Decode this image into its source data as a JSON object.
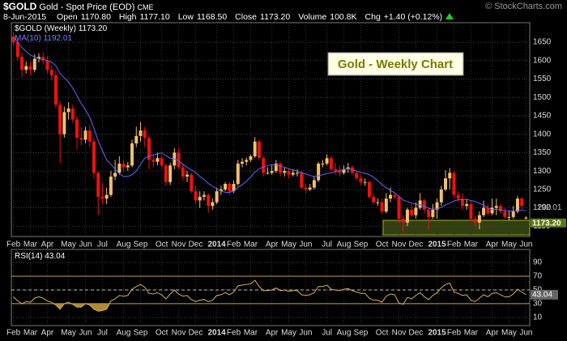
{
  "header": {
    "symbol": "$GOLD",
    "name": "Gold - Spot Price (EOD)",
    "exchange": "CME",
    "copyright": "© StockCharts.com",
    "date": "8-Jun-2015",
    "fields": [
      {
        "label": "Open",
        "value": "1170.80"
      },
      {
        "label": "High",
        "value": "1177.10"
      },
      {
        "label": "Low",
        "value": "1168.50"
      },
      {
        "label": "Close",
        "value": "1173.20"
      },
      {
        "label": "Volume",
        "value": "100.8K"
      },
      {
        "label": "Chg",
        "value": "+1.40 (+0.12%)"
      }
    ]
  },
  "chart_data": [
    {
      "type": "candlestick",
      "annotation": "Gold - Weekly Chart",
      "categories": [
        "Feb",
        null,
        null,
        null,
        "Mar",
        null,
        null,
        null,
        "Apr",
        null,
        null,
        null,
        null,
        "May",
        null,
        null,
        null,
        "Jun",
        null,
        null,
        null,
        "Jul",
        null,
        null,
        null,
        null,
        "Aug",
        null,
        null,
        null,
        "Sep",
        null,
        null,
        null,
        null,
        "Oct",
        null,
        null,
        null,
        "Nov",
        null,
        null,
        null,
        "Dec",
        null,
        null,
        null,
        null,
        "2014",
        null,
        null,
        null,
        "Feb",
        null,
        null,
        null,
        "Mar",
        null,
        null,
        null,
        null,
        "Apr",
        null,
        null,
        null,
        "May",
        null,
        null,
        null,
        "Jun",
        null,
        null,
        null,
        null,
        "Jul",
        null,
        null,
        null,
        "Aug",
        null,
        null,
        null,
        "Sep",
        null,
        null,
        null,
        null,
        "Oct",
        null,
        null,
        null,
        "Nov",
        null,
        null,
        null,
        "Dec",
        null,
        null,
        null,
        null,
        "2015",
        null,
        null,
        null,
        "Feb",
        null,
        null,
        null,
        "Mar",
        null,
        null,
        null,
        null,
        "Apr",
        null,
        null,
        null,
        "May",
        null,
        null,
        null,
        "Jun"
      ],
      "series": [
        {
          "name": "$GOLD (Weekly)",
          "value_label": "1173.20",
          "up_color": "#f0c070",
          "down_color": "#ee1111",
          "open": [
            1665,
            1650,
            1610,
            1575,
            1585,
            1575,
            1605,
            1610,
            1600,
            1575,
            1560,
            1480,
            1400,
            1460,
            1470,
            1440,
            1390,
            1385,
            1410,
            1380,
            1295,
            1230,
            1225,
            1235,
            1285,
            1295,
            1320,
            1310,
            1315,
            1375,
            1395,
            1410,
            1390,
            1330,
            1325,
            1335,
            1315,
            1270,
            1315,
            1350,
            1310,
            1285,
            1290,
            1245,
            1220,
            1230,
            1235,
            1205,
            1215,
            1245,
            1250,
            1265,
            1245,
            1265,
            1320,
            1325,
            1330,
            1340,
            1380,
            1335,
            1295,
            1295,
            1300,
            1320,
            1295,
            1300,
            1290,
            1295,
            1295,
            1255,
            1250,
            1255,
            1275,
            1320,
            1320,
            1335,
            1305,
            1300,
            1295,
            1305,
            1310,
            1295,
            1280,
            1270,
            1270,
            1230,
            1215,
            1215,
            1190,
            1225,
            1235,
            1230,
            1170,
            1160,
            1195,
            1180,
            1200,
            1220,
            1195,
            1175,
            1195,
            1215,
            1250,
            1280,
            1295,
            1235,
            1225,
            1205,
            1210,
            1170,
            1160,
            1180,
            1200,
            1185,
            1200,
            1205,
            1190,
            1175,
            1175,
            1190,
            1225,
            1170.8
          ],
          "high": [
            1677,
            1660,
            1622,
            1597,
            1597,
            1617,
            1620,
            1622,
            1612,
            1587,
            1572,
            1490,
            1475,
            1487,
            1480,
            1450,
            1420,
            1420,
            1425,
            1390,
            1300,
            1268,
            1255,
            1300,
            1330,
            1340,
            1330,
            1325,
            1385,
            1420,
            1433,
            1420,
            1395,
            1345,
            1350,
            1340,
            1320,
            1322,
            1362,
            1362,
            1320,
            1300,
            1295,
            1260,
            1245,
            1245,
            1240,
            1225,
            1255,
            1260,
            1270,
            1270,
            1275,
            1330,
            1335,
            1337,
            1345,
            1392,
            1385,
            1340,
            1310,
            1315,
            1330,
            1325,
            1310,
            1305,
            1305,
            1305,
            1300,
            1265,
            1265,
            1285,
            1325,
            1330,
            1345,
            1340,
            1322,
            1315,
            1315,
            1322,
            1315,
            1300,
            1290,
            1280,
            1275,
            1240,
            1225,
            1225,
            1240,
            1255,
            1240,
            1235,
            1180,
            1200,
            1210,
            1215,
            1240,
            1225,
            1200,
            1210,
            1225,
            1260,
            1302,
            1308,
            1300,
            1245,
            1240,
            1225,
            1220,
            1178,
            1190,
            1220,
            1210,
            1225,
            1225,
            1210,
            1200,
            1190,
            1205,
            1232,
            1230,
            1177.1
          ],
          "low": [
            1640,
            1600,
            1555,
            1565,
            1560,
            1568,
            1595,
            1590,
            1565,
            1545,
            1470,
            1321,
            1390,
            1440,
            1430,
            1360,
            1370,
            1375,
            1365,
            1280,
            1180,
            1210,
            1210,
            1230,
            1275,
            1290,
            1300,
            1300,
            1310,
            1365,
            1380,
            1365,
            1305,
            1310,
            1315,
            1305,
            1260,
            1262,
            1305,
            1305,
            1275,
            1270,
            1240,
            1210,
            1200,
            1220,
            1187,
            1195,
            1210,
            1235,
            1245,
            1235,
            1240,
            1260,
            1310,
            1315,
            1325,
            1335,
            1330,
            1285,
            1290,
            1290,
            1295,
            1285,
            1285,
            1280,
            1285,
            1285,
            1250,
            1240,
            1245,
            1250,
            1270,
            1310,
            1315,
            1300,
            1290,
            1285,
            1290,
            1295,
            1290,
            1275,
            1262,
            1260,
            1225,
            1208,
            1205,
            1183,
            1185,
            1215,
            1222,
            1160,
            1132,
            1150,
            1175,
            1170,
            1195,
            1185,
            1142,
            1170,
            1170,
            1205,
            1245,
            1250,
            1225,
            1215,
            1195,
            1195,
            1165,
            1150,
            1142,
            1175,
            1178,
            1180,
            1180,
            1185,
            1170,
            1165,
            1170,
            1185,
            1195,
            1168.5
          ],
          "close": [
            1650,
            1610,
            1575,
            1585,
            1575,
            1605,
            1610,
            1600,
            1575,
            1560,
            1480,
            1400,
            1460,
            1470,
            1440,
            1390,
            1385,
            1410,
            1380,
            1295,
            1230,
            1225,
            1235,
            1285,
            1295,
            1320,
            1310,
            1315,
            1375,
            1395,
            1410,
            1390,
            1330,
            1325,
            1335,
            1315,
            1270,
            1315,
            1350,
            1310,
            1285,
            1290,
            1245,
            1220,
            1230,
            1235,
            1205,
            1215,
            1245,
            1250,
            1265,
            1245,
            1265,
            1320,
            1325,
            1330,
            1340,
            1380,
            1335,
            1295,
            1295,
            1300,
            1320,
            1295,
            1300,
            1290,
            1295,
            1295,
            1255,
            1250,
            1255,
            1275,
            1320,
            1320,
            1335,
            1305,
            1300,
            1295,
            1305,
            1310,
            1295,
            1280,
            1270,
            1270,
            1230,
            1215,
            1215,
            1190,
            1225,
            1235,
            1230,
            1170,
            1160,
            1195,
            1180,
            1200,
            1220,
            1195,
            1175,
            1195,
            1215,
            1250,
            1280,
            1295,
            1235,
            1225,
            1205,
            1210,
            1170,
            1160,
            1180,
            1200,
            1185,
            1200,
            1205,
            1190,
            1175,
            1175,
            1190,
            1225,
            1205,
            1173.2
          ]
        },
        {
          "name": "MA(10)",
          "value_label": "1192.01",
          "color": "#6464ff",
          "values": [
            1665,
            1650,
            1635,
            1625,
            1615,
            1610,
            1605,
            1603,
            1600,
            1596,
            1586,
            1565,
            1553,
            1542,
            1525,
            1505,
            1483,
            1466,
            1446,
            1416,
            1382,
            1355,
            1330,
            1318,
            1305,
            1293,
            1285,
            1285,
            1290,
            1300,
            1318,
            1335,
            1340,
            1344,
            1347,
            1349,
            1342,
            1335,
            1333,
            1328,
            1318,
            1310,
            1303,
            1296,
            1285,
            1277,
            1266,
            1259,
            1252,
            1245,
            1242,
            1242,
            1246,
            1255,
            1263,
            1272,
            1284,
            1297,
            1306,
            1311,
            1315,
            1317,
            1316,
            1314,
            1310,
            1306,
            1303,
            1299,
            1296,
            1292,
            1288,
            1285,
            1287,
            1290,
            1293,
            1295,
            1298,
            1301,
            1304,
            1306,
            1304,
            1300,
            1296,
            1294,
            1290,
            1283,
            1274,
            1263,
            1255,
            1247,
            1241,
            1231,
            1221,
            1217,
            1213,
            1210,
            1208,
            1204,
            1199,
            1196,
            1197,
            1201,
            1208,
            1213,
            1218,
            1222,
            1222,
            1223,
            1220,
            1217,
            1212,
            1207,
            1200,
            1195,
            1196,
            1195,
            1193,
            1191,
            1192,
            1193,
            1193,
            1192.01
          ]
        }
      ],
      "ylim": [
        1122,
        1703
      ],
      "yticks": [
        1150,
        1200,
        1250,
        1300,
        1350,
        1400,
        1450,
        1500,
        1550,
        1600,
        1650
      ],
      "grid": true
    },
    {
      "type": "line",
      "name": "RSI(14)",
      "value_label": "43.04",
      "color": "#d8b060",
      "fill_color": "#b08a30",
      "values": [
        40,
        34,
        30,
        33,
        32,
        38,
        40,
        38,
        34,
        32,
        28,
        22,
        30,
        32,
        29,
        25,
        25,
        30,
        28,
        22,
        19,
        20,
        22,
        34,
        37,
        42,
        41,
        42,
        51,
        55,
        58,
        54,
        45,
        44,
        46,
        43,
        37,
        44,
        50,
        44,
        41,
        42,
        36,
        33,
        35,
        36,
        33,
        35,
        42,
        43,
        46,
        43,
        47,
        56,
        57,
        58,
        59,
        64,
        55,
        49,
        49,
        50,
        53,
        49,
        50,
        48,
        49,
        49,
        43,
        42,
        43,
        46,
        55,
        55,
        57,
        51,
        50,
        49,
        51,
        52,
        49,
        47,
        45,
        45,
        38,
        35,
        35,
        32,
        41,
        44,
        43,
        31,
        29,
        39,
        37,
        42,
        46,
        40,
        36,
        42,
        46,
        53,
        58,
        60,
        47,
        45,
        42,
        43,
        35,
        33,
        38,
        43,
        40,
        45,
        46,
        43,
        40,
        40,
        44,
        51,
        47,
        43.04
      ],
      "ylim": [
        -2,
        109
      ],
      "yticks": [
        10,
        30,
        50,
        70,
        90
      ],
      "ref_lines": [
        70,
        30
      ],
      "mid_line": 50,
      "grid": true
    }
  ]
}
